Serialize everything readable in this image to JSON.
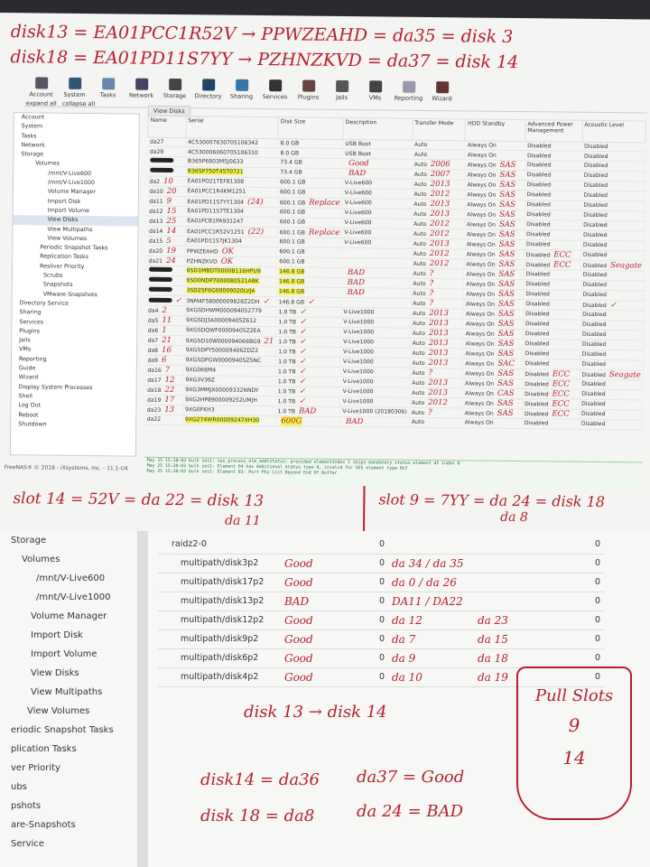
{
  "notes_top": [
    "disk13 = EA01PCC1R52V → PPWZEAHD = da35 = disk 3",
    "disk18 = EA01PD11S7YY → PZHNZKVD = da37 = disk 14"
  ],
  "toolbar": [
    "Account",
    "System",
    "Tasks",
    "Network",
    "Storage",
    "Directory",
    "Sharing",
    "Services",
    "Plugins",
    "Jails",
    "VMs",
    "Reporting",
    "Wizard"
  ],
  "tree_links": {
    "expand": "expand all",
    "collapse": "collapse all"
  },
  "tree": [
    "Account",
    "System",
    "Tasks",
    "Network",
    "Storage",
    "Volumes",
    "/mnt/V-Live600",
    "/mnt/V-Live1000",
    "Volume Manager",
    "Import Disk",
    "Import Volume",
    "View Disks",
    "View Multipaths",
    "View Volumes",
    "Periodic Snapshot Tasks",
    "Replication Tasks",
    "Resilver Priority",
    "Scrubs",
    "Snapshots",
    "VMware-Snapshots",
    "Directory Service",
    "Sharing",
    "Services",
    "Plugins",
    "Jails",
    "VMs",
    "Reporting",
    "Guide",
    "Wizard",
    "Display System Processes",
    "Shell",
    "Log Out",
    "Reboot",
    "Shutdown"
  ],
  "tree_selected": "View Disks",
  "tab": "View Disks",
  "columns": [
    "Name",
    "Serial",
    "Disk Size",
    "Description",
    "Transfer Mode",
    "HDD Standby",
    "Advanced Power Management",
    "Acoustic Level"
  ],
  "rows": [
    {
      "name": "da27",
      "serial": "4C530007630705106342",
      "size": "8.0 GB",
      "desc": "USB Boot",
      "mode": "Auto",
      "standby": "Always On",
      "apm": "Disabled",
      "ac": "Disabled"
    },
    {
      "name": "da28",
      "serial": "4C530006060705106310",
      "size": "8.0 GB",
      "desc": "USB Boot",
      "mode": "Auto",
      "standby": "Always On",
      "apm": "Disabled",
      "ac": "Disabled"
    },
    {
      "name": "",
      "redacted": true,
      "serial": "B365P6803M5J0633",
      "size": "73.4 GB",
      "desc": "",
      "desc_n": "Good",
      "mode": "Auto",
      "mode_n": "2006",
      "standby": "Always On",
      "sb_n": "SAS",
      "apm": "Disabled",
      "ac": "Disabled"
    },
    {
      "name": "",
      "redacted": true,
      "serial": "B365P750T45T0721",
      "hl": true,
      "size": "73.4 GB",
      "desc": "",
      "desc_n": "BAD",
      "mode": "Auto",
      "mode_n": "2007",
      "standby": "Always On",
      "sb_n": "SAS",
      "apm": "Disabled",
      "ac": "Disabled"
    },
    {
      "name": "da2",
      "name_n": "10",
      "serial": "EA01PO21TEF81308",
      "size": "600.1 GB",
      "desc": "V-Live600",
      "mode": "Auto",
      "mode_n": "2013",
      "standby": "Always On",
      "sb_n": "SAS",
      "apm": "Disabled",
      "ac": "Disabled"
    },
    {
      "name": "da10",
      "name_n": "20",
      "serial": "EA01PCC1R4KM1251",
      "size": "600.1 GB",
      "desc": "V-Live600",
      "mode": "Auto",
      "mode_n": "2012",
      "standby": "Always On",
      "sb_n": "SAS",
      "apm": "Disabled",
      "ac": "Disabled"
    },
    {
      "name": "da11",
      "name_n": "9",
      "serial": "EA01PD11S7YY1304",
      "serial_n": "(24)",
      "size": "600.1 GB",
      "size_n": "Replace",
      "desc": "V-Live600",
      "mode": "Auto",
      "mode_n": "2013",
      "standby": "Always On",
      "sb_n": "SAS",
      "apm": "Disabled",
      "ac": "Disabled"
    },
    {
      "name": "da12",
      "name_n": "15",
      "serial": "EA01PD11S7TE1304",
      "size": "600.1 GB",
      "desc": "V-Live600",
      "mode": "Auto",
      "mode_n": "2013",
      "standby": "Always On",
      "sb_n": "SAS",
      "apm": "Disabled",
      "ac": "Disabled"
    },
    {
      "name": "da13",
      "name_n": "25",
      "serial": "EA01PCB1PA931247",
      "size": "600.1 GB",
      "desc": "V-Live600",
      "mode": "Auto",
      "mode_n": "2012",
      "standby": "Always On",
      "sb_n": "SAS",
      "apm": "Disabled",
      "ac": "Disabled"
    },
    {
      "name": "da14",
      "name_n": "14",
      "serial": "EA01PCC1R52V1251",
      "serial_n": "(22)",
      "size": "600.1 GB",
      "size_n": "Replace",
      "desc": "V-Live600",
      "mode": "Auto",
      "mode_n": "2012",
      "standby": "Always On",
      "sb_n": "SAS",
      "apm": "Disabled",
      "ac": "Disabled"
    },
    {
      "name": "da15",
      "name_n": "5",
      "serial": "EA01PD11S7JK1304",
      "size": "600.1 GB",
      "desc": "V-Live600",
      "mode": "Auto",
      "mode_n": "2013",
      "standby": "Always On",
      "sb_n": "SAS",
      "apm": "Disabled",
      "ac": "Disabled"
    },
    {
      "name": "da20",
      "name_n": "19",
      "serial": "PPWZEAHD",
      "serial_n": "OK",
      "size": "600.1 GB",
      "desc": "",
      "mode": "Auto",
      "mode_n": "2012",
      "standby": "Always On",
      "sb_n": "SAS",
      "apm": "Disabled",
      "apm_n": "ECC",
      "ac": "Disabled"
    },
    {
      "name": "da21",
      "name_n": "24",
      "serial": "PZHNZKVD",
      "serial_n": "OK",
      "size": "600.1 GB",
      "desc": "",
      "mode": "Auto",
      "mode_n": "2012",
      "standby": "Always On",
      "sb_n": "SAS",
      "apm": "Disabled",
      "apm_n": "ECC",
      "ac": "Disabled",
      "ac_n": "Seagate"
    },
    {
      "name": "",
      "redacted": true,
      "serial": "6SD1MBDT0000B116HPU9",
      "hl": true,
      "size": "146.8 GB",
      "size_hl": true,
      "desc": "",
      "desc_n": "BAD",
      "mode": "Auto",
      "mode_n": "?",
      "standby": "Always On",
      "sb_n": "SAS",
      "apm": "Disabled",
      "ac": "Disabled"
    },
    {
      "name": "",
      "redacted": true,
      "serial": "6SD0NDP7000080521A8K",
      "hl": true,
      "size": "146.8 GB",
      "size_hl": true,
      "desc": "",
      "desc_n": "BAD",
      "mode": "Auto",
      "mode_n": "?",
      "standby": "Always On",
      "sb_n": "SAS",
      "apm": "Disabled",
      "ac": "Disabled"
    },
    {
      "name": "",
      "redacted": true,
      "serial": "3SD2SF6G00009020LVJ4",
      "hl": true,
      "size": "146.8 GB",
      "size_hl": true,
      "desc": "",
      "desc_n": "BAD",
      "mode": "Auto",
      "mode_n": "?",
      "standby": "Always On",
      "sb_n": "SAS",
      "apm": "Disabled",
      "ac": "Disabled"
    },
    {
      "name": "",
      "redacted": true,
      "name_n": "✓",
      "serial": "3NM4F58000009828Z2DH",
      "serial_n": "✓",
      "size": "146.8 GB",
      "size_n": "✓",
      "desc": "",
      "mode": "Auto",
      "mode_n": "?",
      "standby": "Always On",
      "sb_n": "SAS",
      "apm": "Disabled",
      "ac": "Disabled",
      "ac_n": "✓"
    },
    {
      "name": "da4",
      "name_n": "2",
      "serial": "9XGSDHWM000094052779",
      "size": "1.0 TB",
      "size_n": "✓",
      "desc": "V-Live1000",
      "mode": "Auto",
      "mode_n": "2013",
      "standby": "Always On",
      "sb_n": "SAS",
      "apm": "Disabled",
      "ac": "Disabled"
    },
    {
      "name": "da5",
      "name_n": "11",
      "serial": "9XGSDJ3A00009405Z612",
      "size": "1.0 TB",
      "size_n": "✓",
      "desc": "V-Live1000",
      "mode": "Auto",
      "mode_n": "2013",
      "standby": "Always On",
      "sb_n": "SAS",
      "apm": "Disabled",
      "ac": "Disabled"
    },
    {
      "name": "da6",
      "name_n": "1",
      "serial": "9XGSDQWF00009405Z2EA",
      "size": "1.0 TB",
      "size_n": "✓",
      "desc": "V-Live1000",
      "mode": "Auto",
      "mode_n": "2013",
      "standby": "Always On",
      "sb_n": "SAS",
      "apm": "Disabled",
      "ac": "Disabled"
    },
    {
      "name": "da7",
      "name_n": "21",
      "serial": "9XGSD10W000094066BG9",
      "serial_n": "21",
      "size": "1.0 TB",
      "size_n": "✓",
      "desc": "V-Live1000",
      "mode": "Auto",
      "mode_n": "2013",
      "standby": "Always On",
      "sb_n": "SAS",
      "apm": "Disabled",
      "ac": "Disabled"
    },
    {
      "name": "da8",
      "name_n": "16",
      "serial": "9XGSDPY500009406ZDZ2",
      "size": "1.0 TB",
      "size_n": "✓",
      "desc": "V-Live1000",
      "mode": "Auto",
      "mode_n": "2013",
      "standby": "Always On",
      "sb_n": "SAS",
      "apm": "Disabled",
      "ac": "Disabled"
    },
    {
      "name": "da9",
      "name_n": "6",
      "serial": "9XGSDPGW00009405Z5NC",
      "size": "1.0 TB",
      "size_n": "✓",
      "desc": "V-Live1000",
      "mode": "Auto",
      "mode_n": "2013",
      "standby": "Always On",
      "sb_n": "SAC",
      "apm": "Disabled",
      "ac": "Disabled"
    },
    {
      "name": "da16",
      "name_n": "7",
      "serial": "9XG0K6M4",
      "size": "1.0 TB",
      "size_n": "✓",
      "desc": "V-Live1000",
      "mode": "Auto",
      "mode_n": "?",
      "standby": "Always On",
      "sb_n": "SAS",
      "apm": "Disabled",
      "apm_n": "ECC",
      "ac": "Disabled",
      "ac_n": "Seagate"
    },
    {
      "name": "da17",
      "name_n": "12",
      "serial": "9XG3V36Z",
      "size": "1.0 TB",
      "size_n": "✓",
      "desc": "V-Live1000",
      "mode": "Auto",
      "mode_n": "2013",
      "standby": "Always On",
      "sb_n": "SAS",
      "apm": "Disabled",
      "apm_n": "ECC",
      "ac": "Disabled"
    },
    {
      "name": "da18",
      "name_n": "22",
      "serial": "9XG3MMJX00009332NNDY",
      "size": "1.0 TB",
      "size_n": "✓",
      "desc": "V-Live1000",
      "mode": "Auto",
      "mode_n": "2013",
      "standby": "Always On",
      "sb_n": "CAS",
      "apm": "Disabled",
      "apm_n": "ECC",
      "ac": "Disabled"
    },
    {
      "name": "da19",
      "name_n": "17",
      "serial": "9XG2HP8900009252UMJH",
      "size": "1.0 TB",
      "size_n": "✓",
      "desc": "V-Live1000",
      "mode": "Auto",
      "mode_n": "2012",
      "standby": "Always On",
      "sb_n": "SAS",
      "apm": "Disabled",
      "apm_n": "ECC",
      "ac": "Disabled"
    },
    {
      "name": "da23",
      "name_n": "13",
      "serial": "9XG0FKH3",
      "size": "1.0 TB",
      "size_n": "BAD",
      "desc": "V-Live1000 (20180306)",
      "mode": "Auto",
      "mode_n": "?",
      "standby": "Always On",
      "sb_n": "SAS",
      "apm": "Disabled",
      "apm_n": "ECC",
      "ac": "Disabled"
    },
    {
      "name": "da22",
      "serial": "9XG274WR00009247XH30",
      "hl": true,
      "size": "",
      "size_n": "600G",
      "desc": "",
      "desc_n": "BAD",
      "mode": "Auto",
      "standby": "Always On",
      "apm": "Disabled",
      "ac": "Disabled"
    }
  ],
  "footer": "FreeNAS® © 2018 - iXsystems, Inc. - 11.1-U4",
  "log": [
    "May 25 15:30:03 bulk ses1: ses_process_elm_addlstatus: provided elementIndex 1 skips mandatory status element at index 0",
    "May 25 15:30:03 bulk ses1: Element 64 has Additional Status type 0, invalid for SES element type 0x7",
    "May 25 15:30:03 bulk ses1: Element 83: Port Phy List Beyond End Of Buffer"
  ],
  "notes_mid": {
    "left": "slot 14 = 52V = da 22 = disk 13",
    "left_sub": "da 11",
    "right": "slot 9 = 7YY = da 24 = disk 18",
    "right_sub": "da 8"
  },
  "tree2": [
    "Storage",
    "Volumes",
    "/mnt/V-Live600",
    "/mnt/V-Live1000",
    "Volume Manager",
    "Import Disk",
    "Import Volume",
    "View Disks",
    "View Multipaths",
    "View Volumes",
    "eriodic Snapshot Tasks",
    "plication Tasks",
    "ver Priority",
    "ubs",
    "pshots",
    "are-Snapshots",
    "Service"
  ],
  "pool": [
    {
      "name": "raidz2-0",
      "status": "",
      "read": "0",
      "note": "",
      "note2": "",
      "cksum": "0"
    },
    {
      "name": "multipath/disk3p2",
      "status": "Good",
      "read": "0",
      "note": "da 34 / da 35",
      "note2": "",
      "cksum": "0"
    },
    {
      "name": "multipath/disk17p2",
      "status": "Good",
      "read": "0",
      "note": "da 0 / da 26",
      "note2": "",
      "cksum": "0"
    },
    {
      "name": "multipath/disk13p2",
      "status": "BAD",
      "read": "0",
      "note": "DA11 / DA22",
      "note2": "",
      "cksum": "0"
    },
    {
      "name": "multipath/disk12p2",
      "status": "Good",
      "read": "0",
      "note": "da 12",
      "note2": "da 23",
      "cksum": "0"
    },
    {
      "name": "multipath/disk9p2",
      "status": "Good",
      "read": "0",
      "note": "da 7",
      "note2": "da 15",
      "cksum": "0"
    },
    {
      "name": "multipath/disk6p2",
      "status": "Good",
      "read": "0",
      "note": "da 9",
      "note2": "da 18",
      "cksum": "0"
    },
    {
      "name": "multipath/disk4p2",
      "status": "Good",
      "read": "0",
      "note": "da 10",
      "note2": "da 19",
      "cksum": "0"
    }
  ],
  "notes_bottom": {
    "arrow": "disk 13 → disk 14",
    "l1a": "disk14 = da36",
    "l1b": "da37 = Good",
    "l2a": "disk 18 = da8",
    "l2b": "da 24 = BAD",
    "box_title": "Pull Slots",
    "box_1": "9",
    "box_2": "14"
  },
  "colors": {
    "ink": "#b5202f",
    "highlight": "#f0f34a"
  }
}
